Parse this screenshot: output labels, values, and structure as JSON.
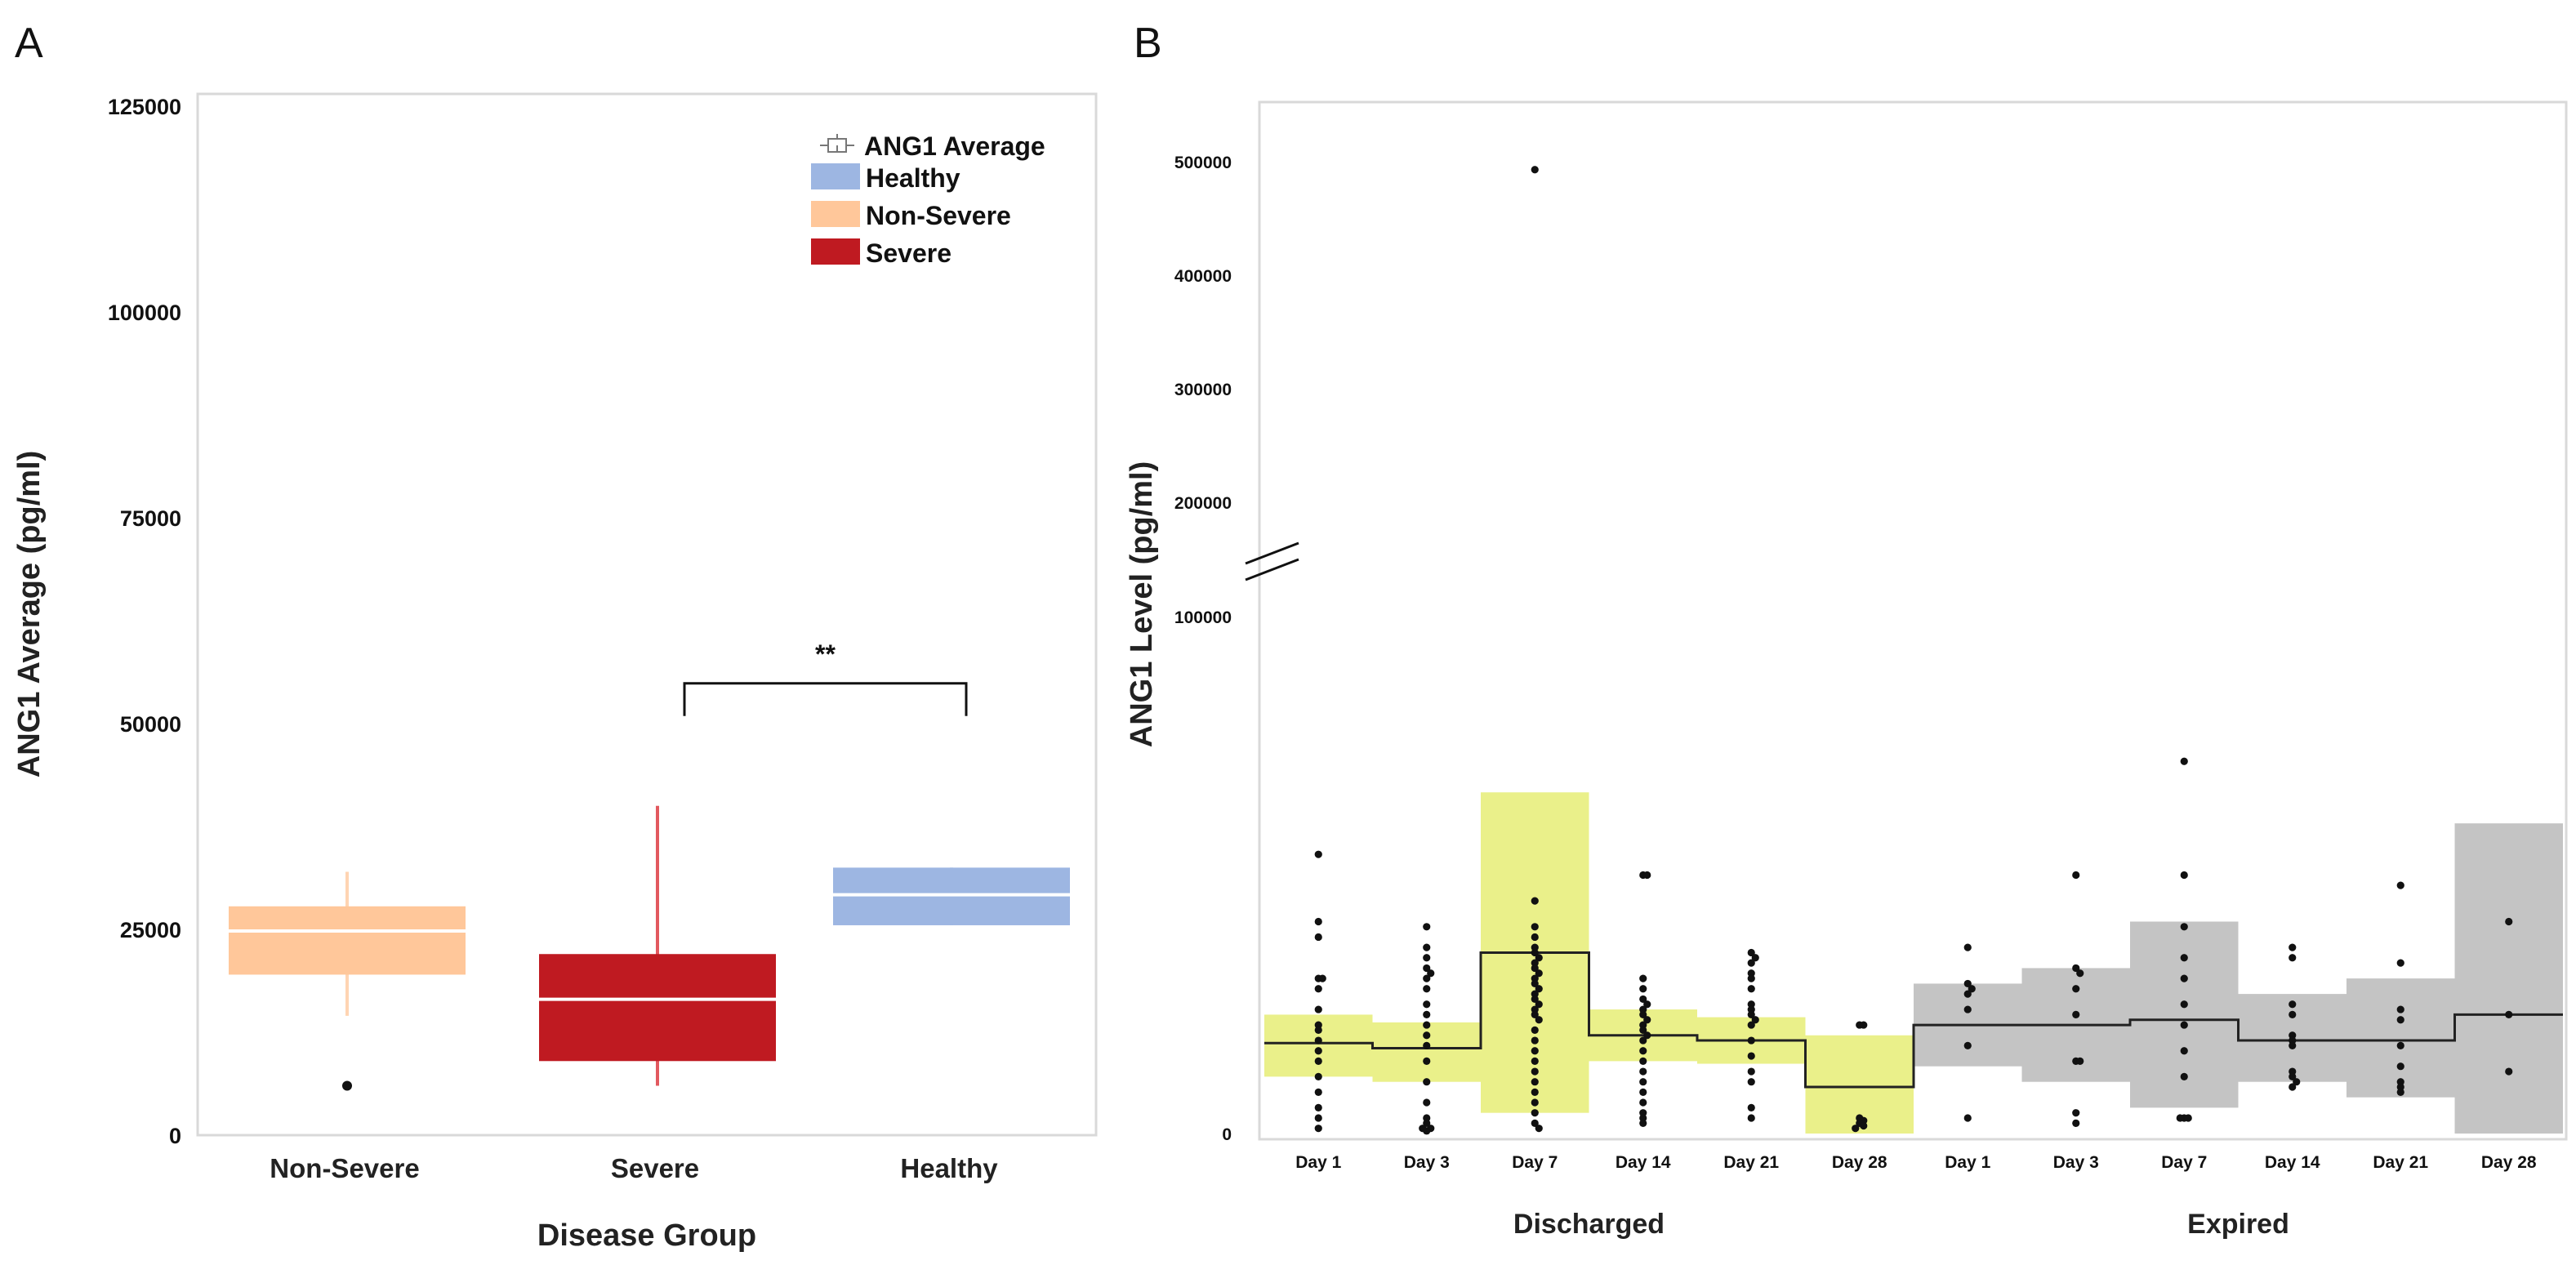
{
  "figure": {
    "panel_a_label": "A",
    "panel_b_label": "B"
  },
  "colors": {
    "healthy": "#9DB6E2",
    "non_severe": "#FFC79A",
    "severe": "#BF1A21",
    "severe_whisker": "#E2595F",
    "non_severe_whisker": "#FFD4B2",
    "discharged_band": "#EAF08A",
    "expired_band": "#C4C4C4",
    "median_line": "#FFFFFF"
  },
  "chart_data": [
    {
      "id": "panel-a",
      "type": "box",
      "xlabel": "Disease Group",
      "ylabel": "ANG1 Average (pg/ml)",
      "ylim": [
        0,
        125000
      ],
      "yticks": [
        "0",
        "25000",
        "50000",
        "75000",
        "100000",
        "125000"
      ],
      "categories": [
        "Non-Severe",
        "Severe",
        "Healthy"
      ],
      "legend": {
        "position": "top-right",
        "title": "ANG1 Average",
        "entries": [
          "Healthy",
          "Non-Severe",
          "Severe"
        ]
      },
      "boxes": [
        {
          "name": "Non-Severe",
          "whisker_low": 14500,
          "q1": 19500,
          "median": 24800,
          "q3": 27800,
          "whisker_high": 32000,
          "outliers": [
            6000
          ]
        },
        {
          "name": "Severe",
          "whisker_low": 6000,
          "q1": 9000,
          "median": 16500,
          "q3": 22000,
          "whisker_high": 40000,
          "outliers": []
        },
        {
          "name": "Healthy",
          "whisker_low": 25500,
          "q1": 25500,
          "median": 29200,
          "q3": 32500,
          "whisker_high": 32500,
          "outliers": []
        }
      ],
      "annotations": [
        {
          "text": "**",
          "between": [
            "Severe",
            "Healthy"
          ],
          "y": 52500
        }
      ]
    },
    {
      "id": "panel-b",
      "type": "scatter",
      "ylabel": "ANG1 Level (pg/ml)",
      "yticks_lower": [
        "0",
        "100000"
      ],
      "yticks_upper": [
        "200000",
        "300000",
        "400000",
        "500000"
      ],
      "axis_break": "between 100000 and 200000",
      "x_groups": [
        "Discharged",
        "Expired"
      ],
      "categories": [
        "Day 1",
        "Day 3",
        "Day 7",
        "Day 14",
        "Day 21",
        "Day 28",
        "Day 1",
        "Day 3",
        "Day 7",
        "Day 14",
        "Day 21",
        "Day 28"
      ],
      "series": [
        {
          "name": "Discharged",
          "days": [
            "Day 1",
            "Day 3",
            "Day 7",
            "Day 14",
            "Day 21",
            "Day 28"
          ],
          "mean": [
            17500,
            16500,
            35000,
            19000,
            18000,
            9000
          ],
          "band_low": [
            11000,
            10000,
            4000,
            14000,
            13500,
            0
          ],
          "band_high": [
            23000,
            21500,
            66000,
            24000,
            22500,
            19000
          ],
          "points": [
            [
              54000,
              41000,
              38000,
              30000,
              30000,
              28000,
              24000,
              21000,
              20000,
              18000,
              16000,
              14000,
              11000,
              8000,
              5000,
              3000,
              1000
            ],
            [
              40000,
              36000,
              34000,
              32000,
              31000,
              30000,
              28000,
              25000,
              23000,
              21000,
              19000,
              17000,
              14000,
              10000,
              6000,
              3000,
              2000,
              1000,
              1000,
              500
            ],
            [
              493000,
              45000,
              40000,
              38000,
              36000,
              35000,
              34000,
              33000,
              32000,
              31000,
              30000,
              29000,
              28000,
              27000,
              26000,
              25000,
              24000,
              23000,
              22000,
              20000,
              18000,
              16000,
              14000,
              12000,
              10000,
              8000,
              6000,
              4000,
              2000,
              1000
            ],
            [
              50000,
              50000,
              30000,
              28000,
              26000,
              25000,
              24000,
              23000,
              22000,
              21000,
              20000,
              19000,
              18000,
              16000,
              14000,
              12000,
              10000,
              8000,
              6000,
              4000,
              3000,
              2000
            ],
            [
              35000,
              34000,
              33000,
              31000,
              30000,
              28000,
              25000,
              24000,
              23000,
              22000,
              21000,
              18000,
              15000,
              12000,
              10000,
              5000,
              3000
            ],
            [
              21000,
              21000,
              3000,
              2500,
              2000,
              1500,
              1000
            ]
          ]
        },
        {
          "name": "Expired",
          "days": [
            "Day 1",
            "Day 3",
            "Day 7",
            "Day 14",
            "Day 21",
            "Day 28"
          ],
          "mean": [
            21000,
            21000,
            22000,
            18000,
            18000,
            23000
          ],
          "band_low": [
            13000,
            10000,
            5000,
            10000,
            7000,
            0
          ],
          "band_high": [
            29000,
            32000,
            41000,
            27000,
            30000,
            60000
          ],
          "points": [
            [
              36000,
              29000,
              28000,
              27000,
              24000,
              17000,
              3000
            ],
            [
              50000,
              32000,
              31000,
              28000,
              23000,
              14000,
              14000,
              4000,
              2000
            ],
            [
              72000,
              50000,
              40000,
              34000,
              30000,
              25000,
              21000,
              16000,
              11000,
              3000,
              3000,
              3000
            ],
            [
              36000,
              34000,
              25000,
              23000,
              19000,
              18000,
              17000,
              12000,
              11000,
              10000,
              9000
            ],
            [
              48000,
              33000,
              24000,
              22000,
              17000,
              13000,
              10000,
              9000,
              8000
            ],
            [
              41000,
              23000,
              12000
            ]
          ]
        }
      ]
    }
  ]
}
